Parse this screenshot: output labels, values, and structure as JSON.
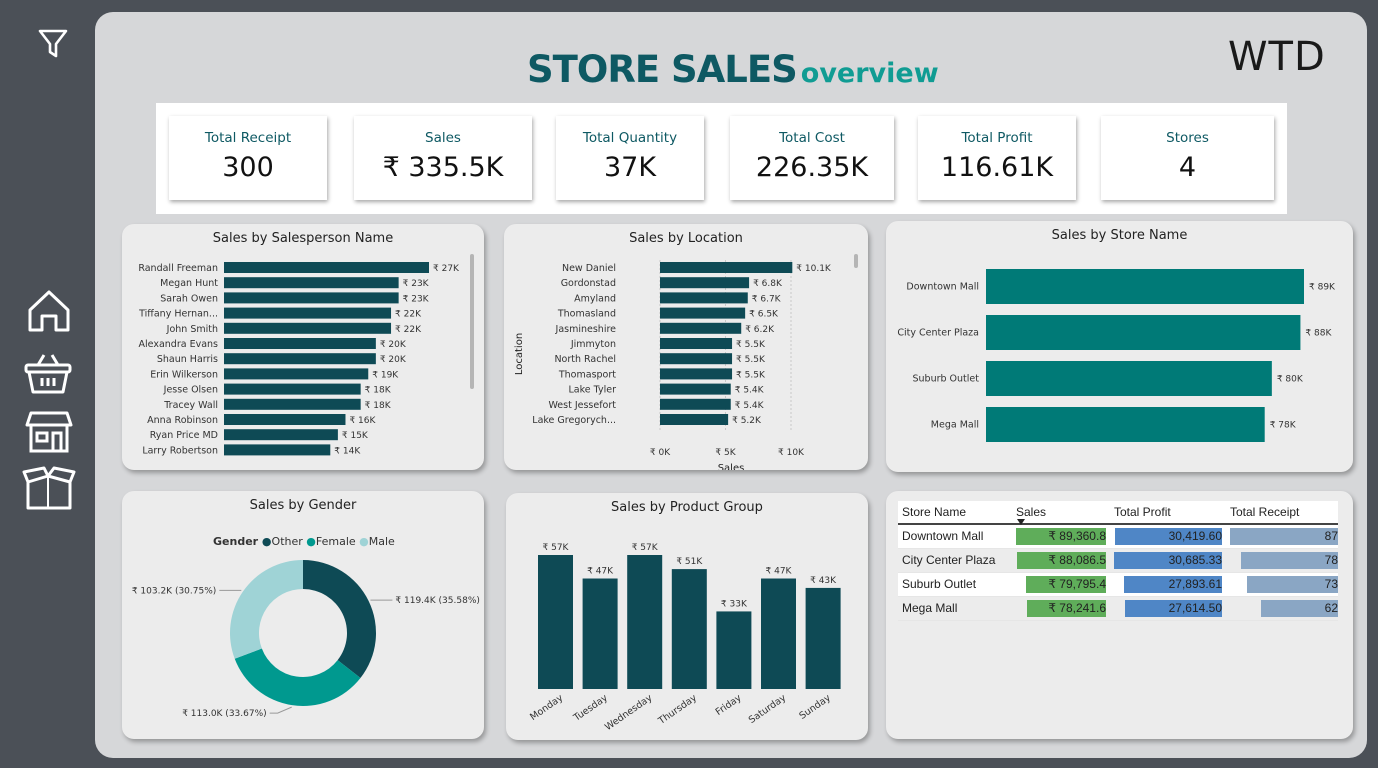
{
  "title": {
    "main": "STORE SALES",
    "sub": "overview"
  },
  "logo": "WTD",
  "kpis": [
    {
      "label": "Total Receipt",
      "value": "300"
    },
    {
      "label": "Sales",
      "value": "₹ 335.5K"
    },
    {
      "label": "Total Quantity",
      "value": "37K"
    },
    {
      "label": "Total Cost",
      "value": "226.35K"
    },
    {
      "label": "Total Profit",
      "value": "116.61K"
    },
    {
      "label": "Stores",
      "value": "4"
    }
  ],
  "colors": {
    "teal_dark": "#0e4a55",
    "teal": "#007a77",
    "gender_other": "#0e4a55",
    "gender_female": "#00998f",
    "gender_male": "#9fd3d6",
    "table_sales": "#5fad5a",
    "table_profit": "#4f86c6",
    "table_receipt": "#8aa6c4"
  },
  "sidebar": {
    "icons": [
      "filter-icon",
      "home-icon",
      "basket-icon",
      "store-icon",
      "box-icon"
    ]
  },
  "chart_data": [
    {
      "type": "bar",
      "orientation": "horizontal",
      "title": "Sales by Salesperson Name",
      "categories": [
        "Randall Freeman",
        "Megan Hunt",
        "Sarah Owen",
        "Tiffany Hernan...",
        "John Smith",
        "Alexandra Evans",
        "Shaun Harris",
        "Erin Wilkerson",
        "Jesse Olsen",
        "Tracey Wall",
        "Anna Robinson",
        "Ryan Price MD",
        "Larry Robertson"
      ],
      "values": [
        27,
        23,
        23,
        22,
        22,
        20,
        20,
        19,
        18,
        18,
        16,
        15,
        14
      ],
      "labels": [
        "₹ 27K",
        "₹ 23K",
        "₹ 23K",
        "₹ 22K",
        "₹ 22K",
        "₹ 20K",
        "₹ 20K",
        "₹ 19K",
        "₹ 18K",
        "₹ 18K",
        "₹ 16K",
        "₹ 15K",
        "₹ 14K"
      ],
      "xmax": 27
    },
    {
      "type": "bar",
      "orientation": "horizontal",
      "title": "Sales by Location",
      "categories": [
        "New Daniel",
        "Gordonstad",
        "Amyland",
        "Thomasland",
        "Jasmineshire",
        "Jimmyton",
        "North Rachel",
        "Thomasport",
        "Lake Tyler",
        "West Jessefort",
        "Lake Gregorych..."
      ],
      "values": [
        10.1,
        6.8,
        6.7,
        6.5,
        6.2,
        5.5,
        5.5,
        5.5,
        5.4,
        5.4,
        5.2
      ],
      "labels": [
        "₹ 10.1K",
        "₹ 6.8K",
        "₹ 6.7K",
        "₹ 6.5K",
        "₹ 6.2K",
        "₹ 5.5K",
        "₹ 5.5K",
        "₹ 5.5K",
        "₹ 5.4K",
        "₹ 5.4K",
        "₹ 5.2K"
      ],
      "xlabel": "Sales",
      "ylabel": "Location",
      "ticks": [
        "₹ 0K",
        "₹ 5K",
        "₹ 10K"
      ],
      "xlim": [
        0,
        10
      ]
    },
    {
      "type": "bar",
      "orientation": "horizontal",
      "title": "Sales by Store Name",
      "categories": [
        "Downtown Mall",
        "City Center Plaza",
        "Suburb Outlet",
        "Mega Mall"
      ],
      "values": [
        89,
        88,
        80,
        78
      ],
      "labels": [
        "₹ 89K",
        "₹ 88K",
        "₹ 80K",
        "₹ 78K"
      ],
      "xmax": 89
    },
    {
      "type": "pie",
      "title": "Sales by Gender",
      "legend_title": "Gender",
      "categories": [
        "Other",
        "Female",
        "Male"
      ],
      "values": [
        119.4,
        113.0,
        103.2
      ],
      "labels": [
        "₹ 119.4K (35.58%)",
        "₹ 113.0K (33.67%)",
        "₹ 103.2K (30.75%)"
      ]
    },
    {
      "type": "bar",
      "title": "Sales by Product Group",
      "categories": [
        "Monday",
        "Tuesday",
        "Wednesday",
        "Thursday",
        "Friday",
        "Saturday",
        "Sunday"
      ],
      "values": [
        57,
        47,
        57,
        51,
        33,
        47,
        43
      ],
      "labels": [
        "₹ 57K",
        "₹ 47K",
        "₹ 57K",
        "₹ 51K",
        "₹ 33K",
        "₹ 47K",
        "₹ 43K"
      ],
      "ymax": 57
    },
    {
      "type": "table",
      "columns": [
        "Store Name",
        "Sales",
        "Total Profit",
        "Total Receipt"
      ],
      "rows": [
        {
          "store": "Downtown Mall",
          "sales": "₹ 89,360.8",
          "sales_v": 89360.8,
          "profit": "30,419.60",
          "profit_v": 30419.6,
          "receipt": "87",
          "receipt_v": 87
        },
        {
          "store": "City Center Plaza",
          "sales": "₹ 88,086.5",
          "sales_v": 88086.5,
          "profit": "30,685.33",
          "profit_v": 30685.33,
          "receipt": "78",
          "receipt_v": 78
        },
        {
          "store": "Suburb Outlet",
          "sales": "₹ 79,795.4",
          "sales_v": 79795.4,
          "profit": "27,893.61",
          "profit_v": 27893.61,
          "receipt": "73",
          "receipt_v": 73
        },
        {
          "store": "Mega Mall",
          "sales": "₹ 78,241.6",
          "sales_v": 78241.6,
          "profit": "27,614.50",
          "profit_v": 27614.5,
          "receipt": "62",
          "receipt_v": 62
        }
      ]
    }
  ]
}
